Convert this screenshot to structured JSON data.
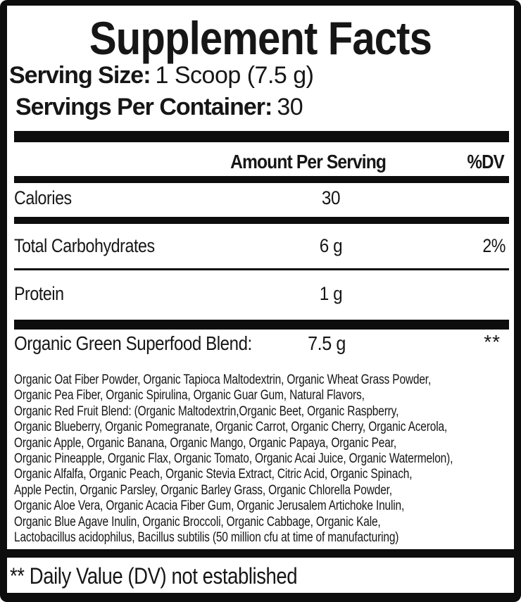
{
  "label": {
    "title": "Supplement Facts",
    "serving_size": {
      "label": "Serving Size:",
      "value": "1 Scoop (7.5 g)"
    },
    "servings_per_container": {
      "label": "Servings Per Container:",
      "value": "30"
    },
    "columns": {
      "amount": "Amount Per Serving",
      "dv": "%DV"
    },
    "rows": [
      {
        "name": "Calories",
        "amount": "30",
        "dv": ""
      },
      {
        "name": "Total Carbohydrates",
        "amount": "6 g",
        "dv": "2%"
      },
      {
        "name": "Protein",
        "amount": "1 g",
        "dv": ""
      },
      {
        "name": "Organic Green Superfood Blend:",
        "amount": "7.5 g",
        "dv": "**"
      }
    ],
    "ingredients_lines": [
      "Organic Oat Fiber Powder, Organic Tapioca Maltodextrin, Organic Wheat Grass Powder,",
      "Organic Pea Fiber, Organic Spirulina, Organic Guar Gum, Natural Flavors,",
      "Organic Red Fruit Blend: (Organic Maltodextrin,Organic Beet, Organic Raspberry,",
      "Organic Blueberry, Organic Pomegranate, Organic Carrot, Organic Cherry, Organic Acerola,",
      "Organic Apple, Organic Banana, Organic Mango, Organic Papaya, Organic Pear,",
      "Organic Pineapple, Organic Flax, Organic Tomato, Organic Acai Juice, Organic Watermelon),",
      "Organic Alfalfa, Organic Peach, Organic Stevia Extract, Citric Acid, Organic Spinach,",
      "Apple Pectin, Organic Parsley, Organic Barley Grass, Organic Chlorella Powder,",
      "Organic Aloe Vera, Organic Acacia Fiber Gum, Organic Jerusalem Artichoke Inulin,",
      "Organic Blue Agave Inulin, Organic Broccoli, Organic Cabbage, Organic Kale,",
      "Lactobacillus acidophilus, Bacillus subtilis (50 million cfu at time of manufacturing)"
    ],
    "footnote": "** Daily Value (DV) not established",
    "colors": {
      "ink": "#0d0d0d",
      "background": "#ffffff"
    }
  }
}
